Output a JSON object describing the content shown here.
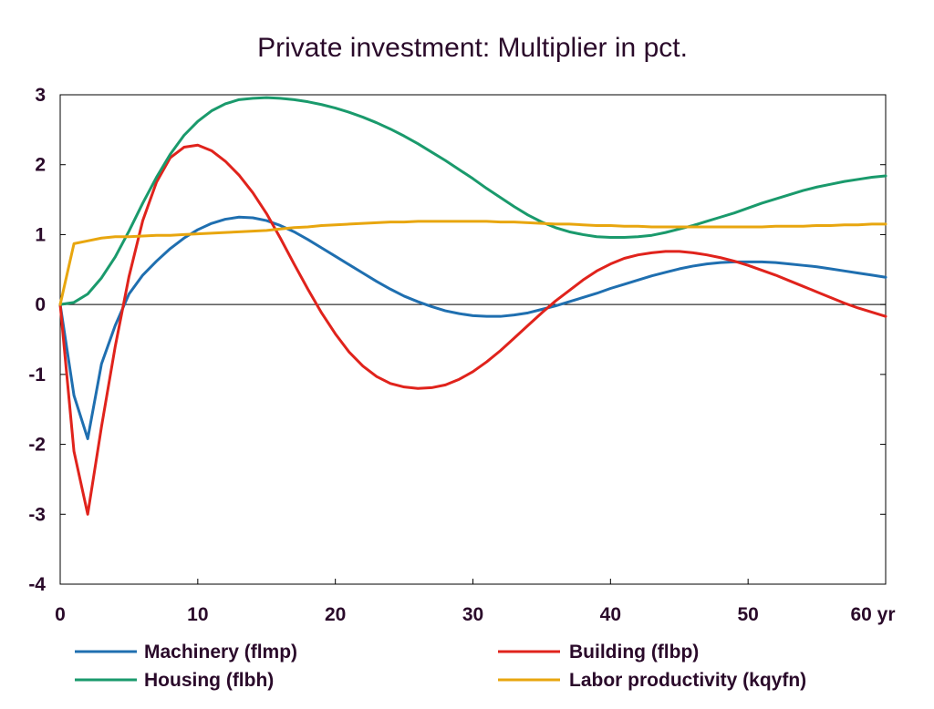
{
  "chart_data": {
    "type": "line",
    "title": "Private investment: Multiplier in pct.",
    "x_unit_label": "yr",
    "xlim": [
      0,
      60
    ],
    "ylim": [
      -4,
      3
    ],
    "x_ticks": [
      0,
      10,
      20,
      30,
      40,
      50,
      60
    ],
    "y_ticks": [
      -4,
      -3,
      -2,
      -1,
      0,
      1,
      2,
      3
    ],
    "zero_line": true,
    "grid": false,
    "legend_position": "bottom",
    "x": [
      0,
      1,
      2,
      3,
      4,
      5,
      6,
      7,
      8,
      9,
      10,
      11,
      12,
      13,
      14,
      15,
      16,
      17,
      18,
      19,
      20,
      21,
      22,
      23,
      24,
      25,
      26,
      27,
      28,
      29,
      30,
      31,
      32,
      33,
      34,
      35,
      36,
      37,
      38,
      39,
      40,
      41,
      42,
      43,
      44,
      45,
      46,
      47,
      48,
      49,
      50,
      51,
      52,
      53,
      54,
      55,
      56,
      57,
      58,
      59,
      60
    ],
    "series": [
      {
        "name": "Machinery (flmp)",
        "color": "#1f6fb0",
        "values": [
          0,
          -1.3,
          -1.92,
          -0.85,
          -0.3,
          0.15,
          0.42,
          0.62,
          0.8,
          0.95,
          1.07,
          1.16,
          1.22,
          1.25,
          1.24,
          1.2,
          1.13,
          1.04,
          0.93,
          0.81,
          0.69,
          0.57,
          0.45,
          0.33,
          0.22,
          0.12,
          0.04,
          -0.03,
          -0.09,
          -0.13,
          -0.16,
          -0.17,
          -0.17,
          -0.15,
          -0.12,
          -0.07,
          -0.02,
          0.04,
          0.1,
          0.16,
          0.23,
          0.29,
          0.35,
          0.41,
          0.46,
          0.51,
          0.55,
          0.58,
          0.6,
          0.61,
          0.61,
          0.61,
          0.6,
          0.58,
          0.56,
          0.54,
          0.51,
          0.48,
          0.45,
          0.42,
          0.39
        ]
      },
      {
        "name": "Building (flbp)",
        "color": "#e0231c",
        "values": [
          0,
          -2.1,
          -3.0,
          -1.75,
          -0.6,
          0.4,
          1.2,
          1.75,
          2.1,
          2.25,
          2.28,
          2.2,
          2.05,
          1.85,
          1.6,
          1.3,
          0.95,
          0.58,
          0.22,
          -0.12,
          -0.42,
          -0.68,
          -0.88,
          -1.03,
          -1.13,
          -1.18,
          -1.2,
          -1.19,
          -1.15,
          -1.07,
          -0.96,
          -0.82,
          -0.66,
          -0.48,
          -0.3,
          -0.12,
          0.05,
          0.2,
          0.35,
          0.48,
          0.58,
          0.66,
          0.71,
          0.74,
          0.76,
          0.76,
          0.74,
          0.71,
          0.67,
          0.62,
          0.56,
          0.49,
          0.42,
          0.34,
          0.26,
          0.18,
          0.1,
          0.02,
          -0.05,
          -0.11,
          -0.17
        ]
      },
      {
        "name": "Housing (flbh)",
        "color": "#1a9a6c",
        "values": [
          0,
          0.03,
          0.15,
          0.38,
          0.68,
          1.05,
          1.45,
          1.82,
          2.15,
          2.42,
          2.62,
          2.77,
          2.87,
          2.93,
          2.95,
          2.96,
          2.95,
          2.93,
          2.9,
          2.86,
          2.81,
          2.75,
          2.68,
          2.6,
          2.51,
          2.41,
          2.3,
          2.18,
          2.06,
          1.93,
          1.8,
          1.66,
          1.53,
          1.4,
          1.28,
          1.18,
          1.1,
          1.04,
          1.0,
          0.97,
          0.96,
          0.96,
          0.97,
          0.99,
          1.03,
          1.08,
          1.13,
          1.19,
          1.25,
          1.31,
          1.38,
          1.45,
          1.51,
          1.57,
          1.63,
          1.68,
          1.72,
          1.76,
          1.79,
          1.82,
          1.84
        ]
      },
      {
        "name": "Labor productivity (kqyfn)",
        "color": "#e8a60f",
        "values": [
          0,
          0.87,
          0.91,
          0.95,
          0.97,
          0.97,
          0.98,
          0.99,
          0.99,
          1.0,
          1.01,
          1.02,
          1.03,
          1.04,
          1.05,
          1.06,
          1.08,
          1.1,
          1.11,
          1.13,
          1.14,
          1.15,
          1.16,
          1.17,
          1.18,
          1.18,
          1.19,
          1.19,
          1.19,
          1.19,
          1.19,
          1.19,
          1.18,
          1.18,
          1.17,
          1.16,
          1.15,
          1.15,
          1.14,
          1.13,
          1.13,
          1.12,
          1.12,
          1.11,
          1.11,
          1.11,
          1.11,
          1.11,
          1.11,
          1.11,
          1.11,
          1.11,
          1.12,
          1.12,
          1.12,
          1.13,
          1.13,
          1.14,
          1.14,
          1.15,
          1.15
        ]
      }
    ]
  }
}
